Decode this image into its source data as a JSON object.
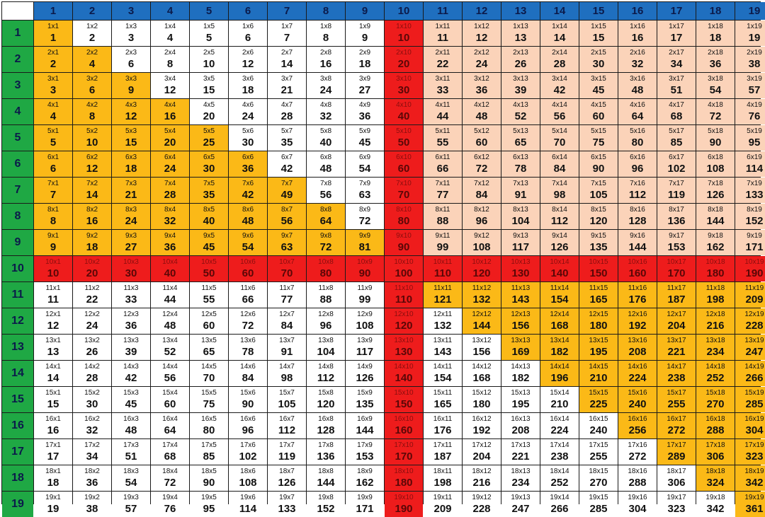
{
  "title": "",
  "columns": [
    1,
    2,
    3,
    4,
    5,
    6,
    7,
    8,
    9,
    10,
    11,
    12,
    13,
    14,
    15,
    16,
    17,
    18,
    19
  ],
  "rows": [
    1,
    2,
    3,
    4,
    5,
    6,
    7,
    8,
    9,
    10,
    11,
    12,
    13,
    14,
    15,
    16,
    17,
    18,
    19
  ],
  "colors": {
    "header_col_bg": "#1f6fbf",
    "header_row_bg": "#1fa844",
    "triangle": "#fbb917",
    "row_tint": "#fbd3b9",
    "ten_line": "#ee1c1c",
    "plain": "#ffffff"
  },
  "cells": [
    [
      "1x1",
      "1",
      "1x2",
      "2",
      "1x3",
      "3",
      "1x4",
      "4",
      "1x5",
      "5",
      "1x6",
      "6",
      "1x7",
      "7",
      "1x8",
      "8",
      "1x9",
      "9",
      "1x10",
      "10",
      "1x11",
      "11",
      "1x12",
      "12",
      "1x13",
      "13",
      "1x14",
      "14",
      "1x15",
      "15",
      "1x16",
      "16",
      "1x17",
      "17",
      "1x18",
      "18",
      "1x19",
      "19"
    ],
    [
      "2x1",
      "2",
      "2x2",
      "4",
      "2x3",
      "6",
      "2x4",
      "8",
      "2x5",
      "10",
      "2x6",
      "12",
      "2x7",
      "14",
      "2x8",
      "16",
      "2x9",
      "18",
      "2x10",
      "20",
      "2x11",
      "22",
      "2x12",
      "24",
      "2x13",
      "26",
      "2x14",
      "28",
      "2x15",
      "30",
      "2x16",
      "32",
      "2x17",
      "34",
      "2x18",
      "36",
      "2x19",
      "38"
    ],
    [
      "3x1",
      "3",
      "3x2",
      "6",
      "3x3",
      "9",
      "3x4",
      "12",
      "3x5",
      "15",
      "3x6",
      "18",
      "3x7",
      "21",
      "3x8",
      "24",
      "3x9",
      "27",
      "3x10",
      "30",
      "3x11",
      "33",
      "3x12",
      "36",
      "3x13",
      "39",
      "3x14",
      "42",
      "3x15",
      "45",
      "3x16",
      "48",
      "3x17",
      "51",
      "3x18",
      "54",
      "3x19",
      "57"
    ],
    [
      "4x1",
      "4",
      "4x2",
      "8",
      "4x3",
      "12",
      "4x4",
      "16",
      "4x5",
      "20",
      "4x6",
      "24",
      "4x7",
      "28",
      "4x8",
      "32",
      "4x9",
      "36",
      "4x10",
      "40",
      "4x11",
      "44",
      "4x12",
      "48",
      "4x13",
      "52",
      "4x14",
      "56",
      "4x15",
      "60",
      "4x16",
      "64",
      "4x17",
      "68",
      "4x18",
      "72",
      "4x19",
      "76"
    ],
    [
      "5x1",
      "5",
      "5x2",
      "10",
      "5x3",
      "15",
      "5x4",
      "20",
      "5x5",
      "25",
      "5x6",
      "30",
      "5x7",
      "35",
      "5x8",
      "40",
      "5x9",
      "45",
      "5x10",
      "50",
      "5x11",
      "55",
      "5x12",
      "60",
      "5x13",
      "65",
      "5x14",
      "70",
      "5x15",
      "75",
      "5x16",
      "80",
      "5x17",
      "85",
      "5x18",
      "90",
      "5x19",
      "95"
    ],
    [
      "6x1",
      "6",
      "6x2",
      "12",
      "6x3",
      "18",
      "6x4",
      "24",
      "6x5",
      "30",
      "6x6",
      "36",
      "6x7",
      "42",
      "6x8",
      "48",
      "6x9",
      "54",
      "6x10",
      "60",
      "6x11",
      "66",
      "6x12",
      "72",
      "6x13",
      "78",
      "6x14",
      "84",
      "6x15",
      "90",
      "6x16",
      "96",
      "6x17",
      "102",
      "6x18",
      "108",
      "6x19",
      "114"
    ],
    [
      "7x1",
      "7",
      "7x2",
      "14",
      "7x3",
      "21",
      "7x4",
      "28",
      "7x5",
      "35",
      "7x6",
      "42",
      "7x7",
      "49",
      "7x8",
      "56",
      "7x9",
      "63",
      "7x10",
      "70",
      "7x11",
      "77",
      "7x12",
      "84",
      "7x13",
      "91",
      "7x14",
      "98",
      "7x15",
      "105",
      "7x16",
      "112",
      "7x17",
      "119",
      "7x18",
      "126",
      "7x19",
      "133"
    ],
    [
      "8x1",
      "8",
      "8x2",
      "16",
      "8x3",
      "24",
      "8x4",
      "32",
      "8x5",
      "40",
      "8x6",
      "48",
      "8x7",
      "56",
      "8x8",
      "64",
      "8x9",
      "72",
      "8x10",
      "80",
      "8x11",
      "88",
      "8x12",
      "96",
      "8x13",
      "104",
      "8x14",
      "112",
      "8x15",
      "120",
      "8x16",
      "128",
      "8x17",
      "136",
      "8x18",
      "144",
      "8x19",
      "152"
    ],
    [
      "9x1",
      "9",
      "9x2",
      "18",
      "9x3",
      "27",
      "9x4",
      "36",
      "9x5",
      "45",
      "9x6",
      "54",
      "9x7",
      "63",
      "9x8",
      "72",
      "9x9",
      "81",
      "9x10",
      "90",
      "9x11",
      "99",
      "9x12",
      "108",
      "9x13",
      "117",
      "9x14",
      "126",
      "9x15",
      "135",
      "9x16",
      "144",
      "9x17",
      "153",
      "9x18",
      "162",
      "9x19",
      "171"
    ],
    [
      "10x1",
      "10",
      "10x2",
      "20",
      "10x3",
      "30",
      "10x4",
      "40",
      "10x5",
      "50",
      "10x6",
      "60",
      "10x7",
      "70",
      "10x8",
      "80",
      "10x9",
      "90",
      "10x10",
      "100",
      "10x11",
      "110",
      "10x12",
      "120",
      "10x13",
      "130",
      "10x14",
      "140",
      "10x15",
      "150",
      "10x16",
      "160",
      "10x17",
      "170",
      "10x18",
      "180",
      "10x19",
      "190"
    ],
    [
      "11x1",
      "11",
      "11x2",
      "22",
      "11x3",
      "33",
      "11x4",
      "44",
      "11x5",
      "55",
      "11x6",
      "66",
      "11x7",
      "77",
      "11x8",
      "88",
      "11x9",
      "99",
      "11x10",
      "110",
      "11x11",
      "121",
      "11x12",
      "132",
      "11x13",
      "143",
      "11x14",
      "154",
      "11x15",
      "165",
      "11x16",
      "176",
      "11x17",
      "187",
      "11x18",
      "198",
      "11x19",
      "209"
    ],
    [
      "12x1",
      "12",
      "12x2",
      "24",
      "12x3",
      "36",
      "12x4",
      "48",
      "12x5",
      "60",
      "12x6",
      "72",
      "12x7",
      "84",
      "12x8",
      "96",
      "12x9",
      "108",
      "12x10",
      "120",
      "12x11",
      "132",
      "12x12",
      "144",
      "12x13",
      "156",
      "12x14",
      "168",
      "12x15",
      "180",
      "12x16",
      "192",
      "12x17",
      "204",
      "12x18",
      "216",
      "12x19",
      "228"
    ],
    [
      "13x1",
      "13",
      "13x2",
      "26",
      "13x3",
      "39",
      "13x4",
      "52",
      "13x5",
      "65",
      "13x6",
      "78",
      "13x7",
      "91",
      "13x8",
      "104",
      "13x9",
      "117",
      "13x10",
      "130",
      "13x11",
      "143",
      "13x12",
      "156",
      "13x13",
      "169",
      "13x14",
      "182",
      "13x15",
      "195",
      "13x16",
      "208",
      "13x17",
      "221",
      "13x18",
      "234",
      "13x19",
      "247"
    ],
    [
      "14x1",
      "14",
      "14x2",
      "28",
      "14x3",
      "42",
      "14x4",
      "56",
      "14x5",
      "70",
      "14x6",
      "84",
      "14x7",
      "98",
      "14x8",
      "112",
      "14x9",
      "126",
      "14x10",
      "140",
      "14x11",
      "154",
      "14x12",
      "168",
      "14x13",
      "182",
      "14x14",
      "196",
      "14x15",
      "210",
      "14x16",
      "224",
      "14x17",
      "238",
      "14x18",
      "252",
      "14x19",
      "266"
    ],
    [
      "15x1",
      "15",
      "15x2",
      "30",
      "15x3",
      "45",
      "15x4",
      "60",
      "15x5",
      "75",
      "15x6",
      "90",
      "15x7",
      "105",
      "15x8",
      "120",
      "15x9",
      "135",
      "15x10",
      "150",
      "15x11",
      "165",
      "15x12",
      "180",
      "15x13",
      "195",
      "15x14",
      "210",
      "15x15",
      "225",
      "15x16",
      "240",
      "15x17",
      "255",
      "15x18",
      "270",
      "15x19",
      "285"
    ],
    [
      "16x1",
      "16",
      "16x2",
      "32",
      "16x3",
      "48",
      "16x4",
      "64",
      "16x5",
      "80",
      "16x6",
      "96",
      "16x7",
      "112",
      "16x8",
      "128",
      "16x9",
      "144",
      "16x10",
      "160",
      "16x11",
      "176",
      "16x12",
      "192",
      "16x13",
      "208",
      "16x14",
      "224",
      "16x15",
      "240",
      "16x16",
      "256",
      "16x17",
      "272",
      "16x18",
      "288",
      "16x19",
      "304"
    ],
    [
      "17x1",
      "17",
      "17x2",
      "34",
      "17x3",
      "51",
      "17x4",
      "68",
      "17x5",
      "85",
      "17x6",
      "102",
      "17x7",
      "119",
      "17x8",
      "136",
      "17x9",
      "153",
      "17x10",
      "170",
      "17x11",
      "187",
      "17x12",
      "204",
      "17x13",
      "221",
      "17x14",
      "238",
      "17x15",
      "255",
      "17x16",
      "272",
      "17x17",
      "289",
      "17x18",
      "306",
      "17x19",
      "323"
    ],
    [
      "18x1",
      "18",
      "18x2",
      "36",
      "18x3",
      "54",
      "18x4",
      "72",
      "18x5",
      "90",
      "18x6",
      "108",
      "18x7",
      "126",
      "18x8",
      "144",
      "18x9",
      "162",
      "18x10",
      "180",
      "18x11",
      "198",
      "18x12",
      "216",
      "18x13",
      "234",
      "18x14",
      "252",
      "18x15",
      "270",
      "18x16",
      "288",
      "18x17",
      "306",
      "18x18",
      "324",
      "18x19",
      "342"
    ],
    [
      "19x1",
      "19",
      "19x2",
      "38",
      "19x3",
      "57",
      "19x4",
      "76",
      "19x5",
      "95",
      "19x6",
      "114",
      "19x7",
      "133",
      "19x8",
      "152",
      "19x9",
      "171",
      "19x10",
      "190",
      "19x11",
      "209",
      "19x12",
      "228",
      "19x13",
      "247",
      "19x14",
      "266",
      "19x15",
      "285",
      "19x16",
      "304",
      "19x17",
      "323",
      "19x18",
      "342",
      "19x19",
      "361"
    ]
  ]
}
